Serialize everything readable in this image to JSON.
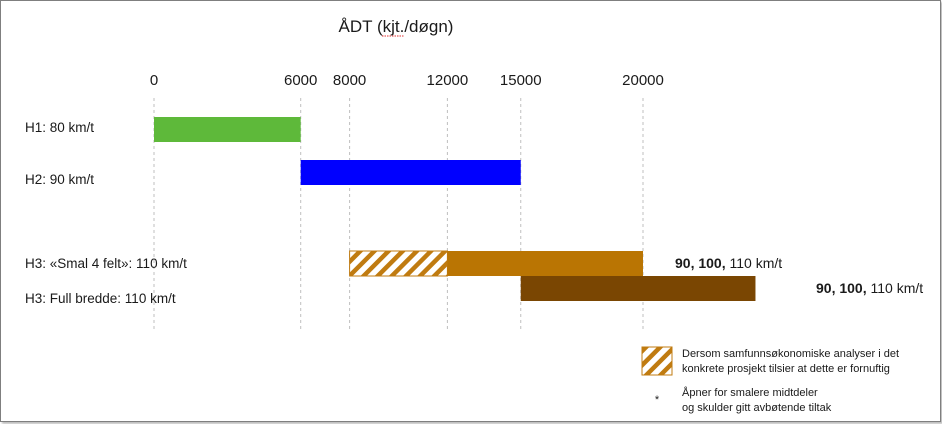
{
  "chart_data": {
    "type": "bar",
    "subtype": "range-bar",
    "title": "ÅDT (kjt./døgn)",
    "x_ticks": [
      0,
      6000,
      8000,
      12000,
      15000,
      20000
    ],
    "xlim": [
      0,
      20000
    ],
    "grid": true,
    "rows": [
      {
        "label": "H1: 80 km/t",
        "segments": [
          {
            "start": 0,
            "end": 6000,
            "color": "#5eb93a",
            "style": "solid"
          }
        ]
      },
      {
        "label": "H2: 90 km/t",
        "segments": [
          {
            "start": 6000,
            "end": 15000,
            "color": "#0000ff",
            "style": "solid"
          }
        ]
      },
      {
        "label": "H3: «Smal 4 felt»:  110 km/t",
        "segments": [
          {
            "start": 8000,
            "end": 12000,
            "color": "#c07b10",
            "style": "hatched"
          },
          {
            "start": 12000,
            "end": 20000,
            "color": "#ba7503",
            "style": "solid"
          }
        ],
        "annotation": {
          "bold": "90, 100,",
          "normal": " 110 km/t"
        }
      },
      {
        "label": "H3: Full bredde: 110 km/t",
        "segments": [
          {
            "start": 15000,
            "end": 24600,
            "color": "#7a4602",
            "style": "solid"
          }
        ],
        "annotation": {
          "bold": "90, 100,",
          "normal": "  110 km/t"
        }
      }
    ],
    "legend": {
      "placement": "bottom-right",
      "items": [
        {
          "style": "hatched",
          "color": "#c07b10",
          "line1": "Dersom samfunnsøkonomiske analyser i det",
          "line2": "konkrete prosjekt tilsier at dette er fornuftig"
        },
        {
          "style": "asterisk",
          "symbol": "*",
          "line1": "Åpner for smalere midtdeler",
          "line2": "og skulder gitt avbøtende tiltak"
        }
      ]
    }
  }
}
